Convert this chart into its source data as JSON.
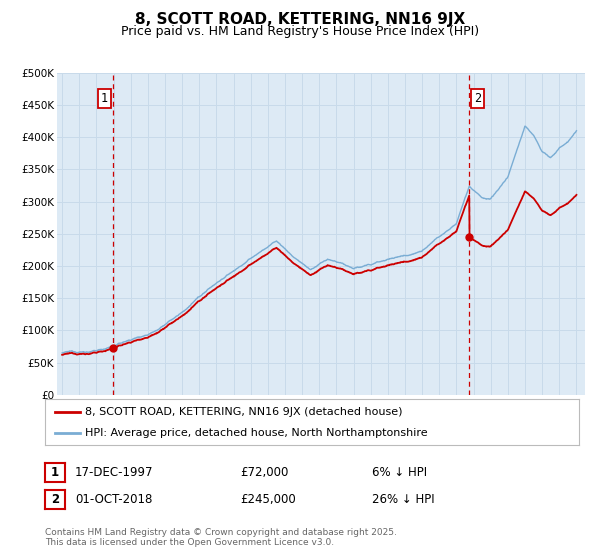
{
  "title": "8, SCOTT ROAD, KETTERING, NN16 9JX",
  "subtitle": "Price paid vs. HM Land Registry's House Price Index (HPI)",
  "ylim": [
    0,
    500000
  ],
  "yticks": [
    0,
    50000,
    100000,
    150000,
    200000,
    250000,
    300000,
    350000,
    400000,
    450000,
    500000
  ],
  "ytick_labels": [
    "£0",
    "£50K",
    "£100K",
    "£150K",
    "£200K",
    "£250K",
    "£300K",
    "£350K",
    "£400K",
    "£450K",
    "£500K"
  ],
  "xlim_start": 1994.7,
  "xlim_end": 2025.5,
  "xticks": [
    1995,
    1996,
    1997,
    1998,
    1999,
    2000,
    2001,
    2002,
    2003,
    2004,
    2005,
    2006,
    2007,
    2008,
    2009,
    2010,
    2011,
    2012,
    2013,
    2014,
    2015,
    2016,
    2017,
    2018,
    2019,
    2020,
    2021,
    2022,
    2023,
    2024,
    2025
  ],
  "sale1_x": 1997.96,
  "sale1_y": 72000,
  "sale2_x": 2018.75,
  "sale2_y": 245000,
  "line1_color": "#cc0000",
  "line2_color": "#7aadd4",
  "vline_color": "#cc0000",
  "grid_color": "#c8daea",
  "bg_color": "#ddeaf5",
  "legend1_text": "8, SCOTT ROAD, KETTERING, NN16 9JX (detached house)",
  "legend2_text": "HPI: Average price, detached house, North Northamptonshire",
  "table_row1": [
    "1",
    "17-DEC-1997",
    "£72,000",
    "6% ↓ HPI"
  ],
  "table_row2": [
    "2",
    "01-OCT-2018",
    "£245,000",
    "26% ↓ HPI"
  ],
  "footnote": "Contains HM Land Registry data © Crown copyright and database right 2025.\nThis data is licensed under the Open Government Licence v3.0.",
  "title_fontsize": 11,
  "subtitle_fontsize": 9
}
